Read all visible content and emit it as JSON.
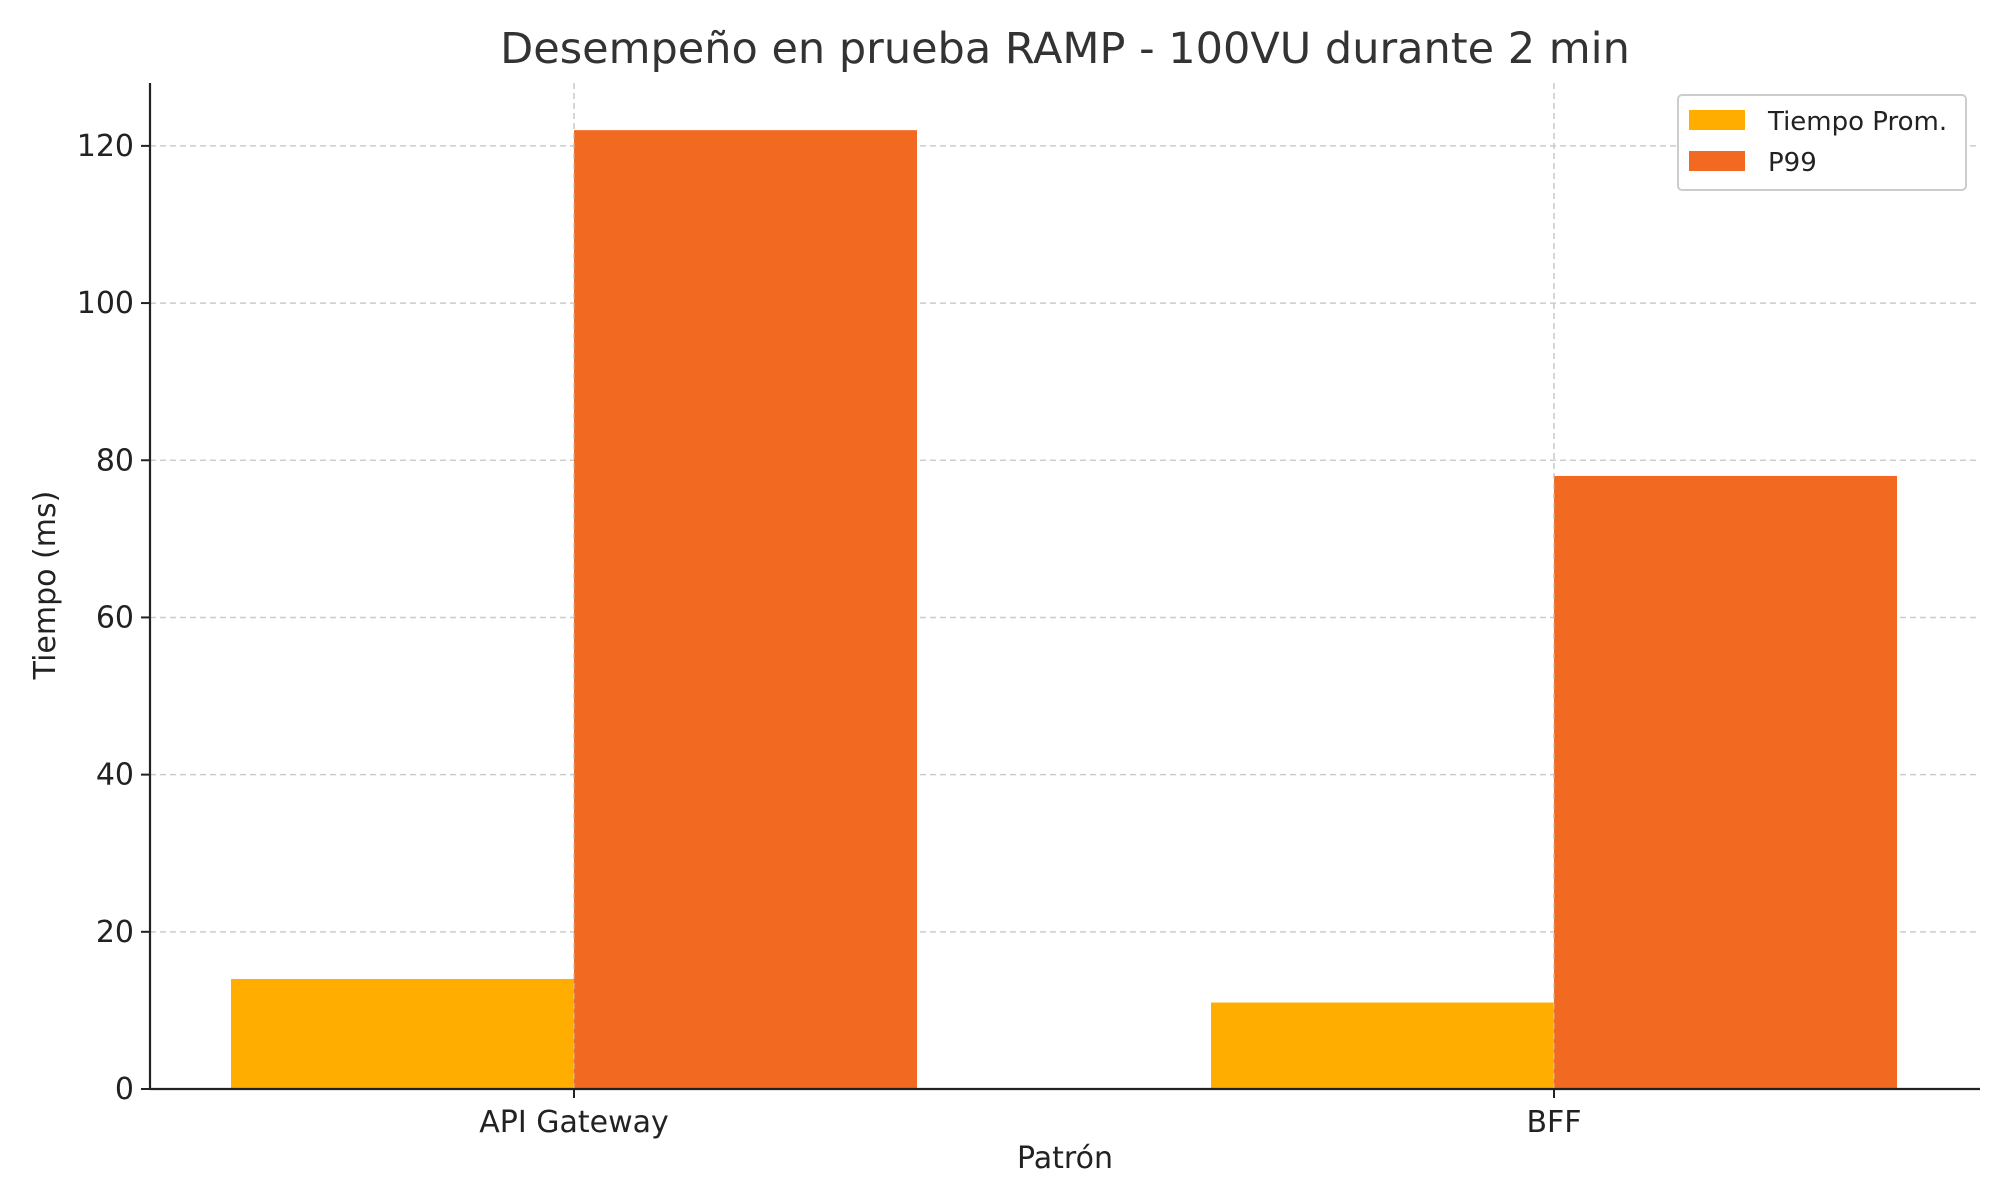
{
  "chart_data": {
    "type": "bar",
    "title": "Desempeño en prueba RAMP - 100VU durante 2 min",
    "xlabel": "Patrón",
    "ylabel": "Tiempo (ms)",
    "categories": [
      "API Gateway",
      "BFF"
    ],
    "series": [
      {
        "name": "Tiempo Prom.",
        "values": [
          14,
          11
        ],
        "color": "#FFAE00"
      },
      {
        "name": "P99",
        "values": [
          122,
          78
        ],
        "color": "#F26A21"
      }
    ],
    "ylim": [
      0,
      128
    ],
    "yticks": [
      0,
      20,
      40,
      60,
      80,
      100,
      120
    ],
    "grid": true,
    "legend_position": "top-right"
  }
}
